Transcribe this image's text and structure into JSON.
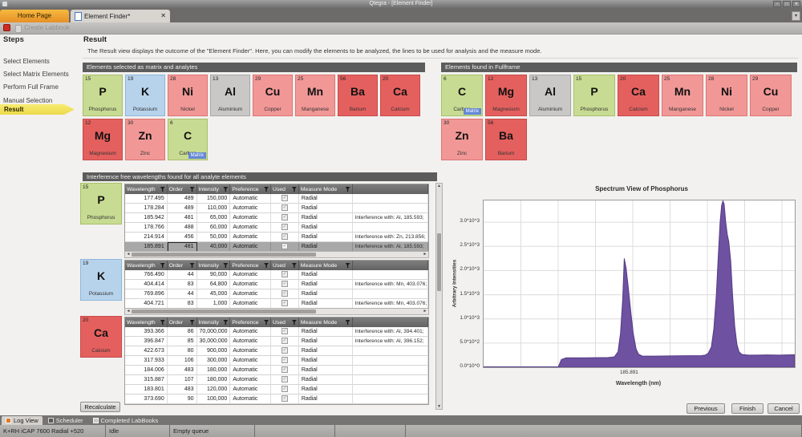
{
  "window": {
    "title": "Qtegra - [Element Finder]",
    "controls": [
      "minimize",
      "restore",
      "close"
    ]
  },
  "tabs": [
    {
      "label": "Home Page"
    },
    {
      "label": "Element Finder*",
      "close": "x"
    }
  ],
  "toolbar": {
    "create_labbook": "Create Labbook"
  },
  "steps": {
    "title": "Steps",
    "items": [
      "Select Elements",
      "Select Matrix Elements",
      "Perform Full Frame",
      "Manual Selection",
      "Result"
    ],
    "active_index": 4
  },
  "result": {
    "title": "Result",
    "description": "The Result view displays the outcome of the \"Element Finder\". Here, you can modify the elements to be analyzed, the lines to be used for analysis and the measure mode."
  },
  "colors": {
    "tiles": {
      "green": {
        "bg": "#c8db92",
        "border": "#a9c06c"
      },
      "blue": {
        "bg": "#b7d3ec",
        "border": "#8fb6dc"
      },
      "pink": {
        "bg": "#f19897",
        "border": "#dd7472"
      },
      "red": {
        "bg": "#e4605e",
        "border": "#c74b49"
      },
      "gray": {
        "bg": "#c9c8c6",
        "border": "#a9a8a6"
      }
    },
    "matrix_badge": "#6387d6",
    "spectrum_purple": "#6e51a1",
    "step_arrow_yellow": "#f3e45d",
    "tab_orange": "#f2a93b",
    "panel_header_gray": "#5c5c5c"
  },
  "panels": {
    "selected": {
      "title": "Elements selected as matrix and analytes",
      "elements": [
        {
          "number": "15",
          "symbol": "P",
          "name": "Phosphorus",
          "color": "green"
        },
        {
          "number": "19",
          "symbol": "K",
          "name": "Potassium",
          "color": "blue"
        },
        {
          "number": "28",
          "symbol": "Ni",
          "name": "Nickel",
          "color": "pink"
        },
        {
          "number": "13",
          "symbol": "Al",
          "name": "Aluminium",
          "color": "gray"
        },
        {
          "number": "29",
          "symbol": "Cu",
          "name": "Copper",
          "color": "pink"
        },
        {
          "number": "25",
          "symbol": "Mn",
          "name": "Manganese",
          "color": "pink"
        },
        {
          "number": "56",
          "symbol": "Ba",
          "name": "Barium",
          "color": "red"
        },
        {
          "number": "20",
          "symbol": "Ca",
          "name": "Calcium",
          "color": "red"
        },
        {
          "number": "12",
          "symbol": "Mg",
          "name": "Magnesium",
          "color": "red"
        },
        {
          "number": "30",
          "symbol": "Zn",
          "name": "Zinc",
          "color": "pink"
        },
        {
          "number": "6",
          "symbol": "C",
          "name": "Carbon",
          "color": "green",
          "badge": "Matrix"
        }
      ]
    },
    "fullframe": {
      "title": "Elements found in Fullframe",
      "elements": [
        {
          "number": "6",
          "symbol": "C",
          "name": "Carbon",
          "color": "green",
          "badge": "Matrix"
        },
        {
          "number": "12",
          "symbol": "Mg",
          "name": "Magnesium",
          "color": "red"
        },
        {
          "number": "13",
          "symbol": "Al",
          "name": "Aluminium",
          "color": "gray"
        },
        {
          "number": "15",
          "symbol": "P",
          "name": "Phosphorus",
          "color": "green"
        },
        {
          "number": "20",
          "symbol": "Ca",
          "name": "Calcium",
          "color": "red"
        },
        {
          "number": "25",
          "symbol": "Mn",
          "name": "Manganese",
          "color": "pink"
        },
        {
          "number": "28",
          "symbol": "Ni",
          "name": "Nickel",
          "color": "pink"
        },
        {
          "number": "29",
          "symbol": "Cu",
          "name": "Copper",
          "color": "pink"
        },
        {
          "number": "30",
          "symbol": "Zn",
          "name": "Zinc",
          "color": "pink"
        },
        {
          "number": "56",
          "symbol": "Ba",
          "name": "Barium",
          "color": "red"
        }
      ]
    },
    "wavelengths": {
      "title": "Interference free wavelengths found for all analyte elements",
      "columns": [
        "Wavelength",
        "Order",
        "Intensity",
        "Preference",
        "Used",
        "Measure Mode"
      ],
      "groups": [
        {
          "element": {
            "number": "15",
            "symbol": "P",
            "name": "Phosphorus",
            "color": "green"
          },
          "selected_row": 5,
          "has_hscrollbar": true,
          "rows": [
            [
              "177.495",
              "489",
              "150,000",
              "Automatic",
              true,
              "Radial",
              ""
            ],
            [
              "178.284",
              "489",
              "110,000",
              "Automatic",
              true,
              "Radial",
              ""
            ],
            [
              "185.942",
              "481",
              "65,000",
              "Automatic",
              true,
              "Radial",
              "Interference with: Al, 185.593;"
            ],
            [
              "178.766",
              "488",
              "60,000",
              "Automatic",
              true,
              "Radial",
              ""
            ],
            [
              "214.914",
              "456",
              "50,000",
              "Automatic",
              true,
              "Radial",
              "Interference with: Zn, 213.856;"
            ],
            [
              "185.891",
              "481",
              "40,000",
              "Automatic",
              true,
              "Radial",
              "Interference with: Al, 185.593;"
            ]
          ]
        },
        {
          "element": {
            "number": "19",
            "symbol": "K",
            "name": "Potassium",
            "color": "blue"
          },
          "selected_row": null,
          "has_hscrollbar": true,
          "rows": [
            [
              "766.490",
              "44",
              "90,000",
              "Automatic",
              true,
              "Radial",
              ""
            ],
            [
              "404.414",
              "83",
              "64,800",
              "Automatic",
              true,
              "Radial",
              "Interference with: Mn, 403.076; Int"
            ],
            [
              "769.896",
              "44",
              "45,000",
              "Automatic",
              true,
              "Radial",
              ""
            ],
            [
              "404.721",
              "83",
              "1,000",
              "Automatic",
              true,
              "Radial",
              "Interference with: Mn, 403.076; Int"
            ]
          ]
        },
        {
          "element": {
            "number": "20",
            "symbol": "Ca",
            "name": "Calcium",
            "color": "red"
          },
          "selected_row": null,
          "has_hscrollbar": false,
          "rows": [
            [
              "393.366",
              "86",
              "70,000,000",
              "Automatic",
              true,
              "Radial",
              "Interference with: Al, 394.401;"
            ],
            [
              "396.847",
              "85",
              "30,000,000",
              "Automatic",
              true,
              "Radial",
              "Interference with: Al, 396.152;"
            ],
            [
              "422.673",
              "80",
              "900,000",
              "Automatic",
              true,
              "Radial",
              ""
            ],
            [
              "317.933",
              "106",
              "300,000",
              "Automatic",
              true,
              "Radial",
              ""
            ],
            [
              "184.006",
              "483",
              "180,000",
              "Automatic",
              true,
              "Radial",
              ""
            ],
            [
              "315.887",
              "107",
              "180,000",
              "Automatic",
              true,
              "Radial",
              ""
            ],
            [
              "183.801",
              "483",
              "120,000",
              "Automatic",
              true,
              "Radial",
              ""
            ],
            [
              "373.690",
              "90",
              "100,000",
              "Automatic",
              true,
              "Radial",
              ""
            ]
          ]
        }
      ]
    }
  },
  "chart_data": {
    "type": "area",
    "title": "Spectrum View of Phosphorus",
    "xlabel": "Wavelength (nm)",
    "ylabel": "Arbitrary Intensities",
    "grid": true,
    "legend": false,
    "ylim": [
      0,
      3450
    ],
    "y_ticks": [
      {
        "label": "0.0*10^0",
        "value": 0
      },
      {
        "label": "5.0*10^2",
        "value": 500
      },
      {
        "label": "1.0*10^3",
        "value": 1000
      },
      {
        "label": "1.5*10^3",
        "value": 1500
      },
      {
        "label": "2.0*10^3",
        "value": 2000
      },
      {
        "label": "2.5*10^3",
        "value": 2500
      },
      {
        "label": "3.0*10^3",
        "value": 3000
      }
    ],
    "x_ticks": [
      {
        "label": "185.891",
        "x_fraction": 0.47
      }
    ],
    "x_gridline_count": 8,
    "series": [
      {
        "name": "Phosphorus spectrum",
        "fill_color": "#6e51a1",
        "stroke_color": "#553c85",
        "points": [
          [
            0,
            8
          ],
          [
            0.24,
            8
          ],
          [
            0.25,
            160
          ],
          [
            0.265,
            195
          ],
          [
            0.33,
            195
          ],
          [
            0.4,
            200
          ],
          [
            0.42,
            215
          ],
          [
            0.432,
            320
          ],
          [
            0.44,
            700
          ],
          [
            0.447,
            1400
          ],
          [
            0.452,
            2250
          ],
          [
            0.458,
            2050
          ],
          [
            0.465,
            1650
          ],
          [
            0.473,
            1150
          ],
          [
            0.481,
            700
          ],
          [
            0.49,
            380
          ],
          [
            0.498,
            270
          ],
          [
            0.51,
            230
          ],
          [
            0.55,
            230
          ],
          [
            0.62,
            235
          ],
          [
            0.7,
            240
          ],
          [
            0.712,
            250
          ],
          [
            0.722,
            290
          ],
          [
            0.732,
            420
          ],
          [
            0.74,
            800
          ],
          [
            0.748,
            1500
          ],
          [
            0.754,
            2300
          ],
          [
            0.76,
            3000
          ],
          [
            0.765,
            3350
          ],
          [
            0.769,
            3440
          ],
          [
            0.773,
            3380
          ],
          [
            0.778,
            3000
          ],
          [
            0.783,
            2750
          ],
          [
            0.788,
            2600
          ],
          [
            0.794,
            2200
          ],
          [
            0.8,
            1500
          ],
          [
            0.807,
            850
          ],
          [
            0.814,
            480
          ],
          [
            0.821,
            320
          ],
          [
            0.83,
            265
          ],
          [
            0.85,
            250
          ],
          [
            0.88,
            250
          ],
          [
            0.91,
            255
          ],
          [
            0.95,
            250
          ],
          [
            1,
            258
          ]
        ]
      }
    ]
  },
  "buttons": {
    "recalculate": "Recalculate",
    "previous": "Previous",
    "finish": "Finish",
    "cancel": "Cancel"
  },
  "dock": {
    "tabs": [
      {
        "label": "Log View",
        "active": true
      },
      {
        "label": "Scheduler",
        "active": false
      },
      {
        "label": "Completed LabBooks",
        "active": false
      }
    ]
  },
  "status": {
    "segments": [
      "K+RH iCAP 7600 Radial +520",
      "Idle",
      "Empty queue",
      "",
      "",
      ""
    ]
  }
}
